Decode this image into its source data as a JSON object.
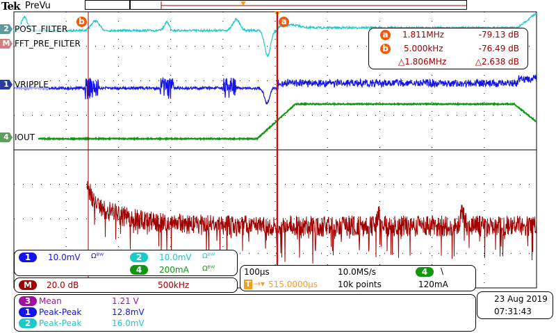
{
  "header": {
    "brand": "Tek",
    "mode": "PreVu"
  },
  "colors": {
    "ch1": "#1414e6",
    "ch2": "#1ec8c8",
    "ch3": "#a010a0",
    "ch4": "#129612",
    "math": "#a00000",
    "cursor": "#f05a0a",
    "trigger": "#f0a020"
  },
  "channels": {
    "ch2": {
      "tag": "2",
      "label": "POST_FILTER"
    },
    "math": {
      "tag": "M",
      "label": "FFT_PRE_FILTER"
    },
    "ch1": {
      "tag": "1",
      "label": "VRIPPLE"
    },
    "ch4": {
      "tag": "4",
      "label": "IOUT"
    }
  },
  "cursors": {
    "a": {
      "name": "a",
      "freq": "1.811MHz",
      "level": "-79.13 dB"
    },
    "b": {
      "name": "b",
      "freq": "5.000kHz",
      "level": "-76.49 dB"
    },
    "delta": {
      "freq": "△1.806MHz",
      "level": "△2.638 dB"
    }
  },
  "vertical": {
    "ch1": {
      "num": "1",
      "scale": "10.0mV",
      "bw": "Ωᴮᵂ"
    },
    "ch2": {
      "num": "2",
      "scale": "10.0mV",
      "bw": "Ωᴮᵂ"
    },
    "ch4": {
      "num": "4",
      "scale": "200mA",
      "bw": "Ωᴮᵂ"
    },
    "math": {
      "num": "M",
      "scale": "20.0 dB",
      "span": "500kHz"
    }
  },
  "horizontal": {
    "scale": "100µs",
    "sample_rate": "10.0MS/s",
    "trigger_pos": "515.0000µs",
    "points": "10k points",
    "trigger_source": "4",
    "trigger_slope": "\\",
    "trigger_level": "120mA",
    "trigger_icon": "T"
  },
  "measurements": [
    {
      "src": "3",
      "name": "Mean",
      "value": "1.21 V",
      "color": "#a010a0"
    },
    {
      "src": "1",
      "name": "Peak-Peak",
      "value": "12.8mV",
      "color": "#1414e6"
    },
    {
      "src": "2",
      "name": "Peak-Peak",
      "value": "16.0mV",
      "color": "#1ec8c8"
    }
  ],
  "datetime": {
    "date": "23 Aug 2019",
    "time": "07:31:43"
  }
}
